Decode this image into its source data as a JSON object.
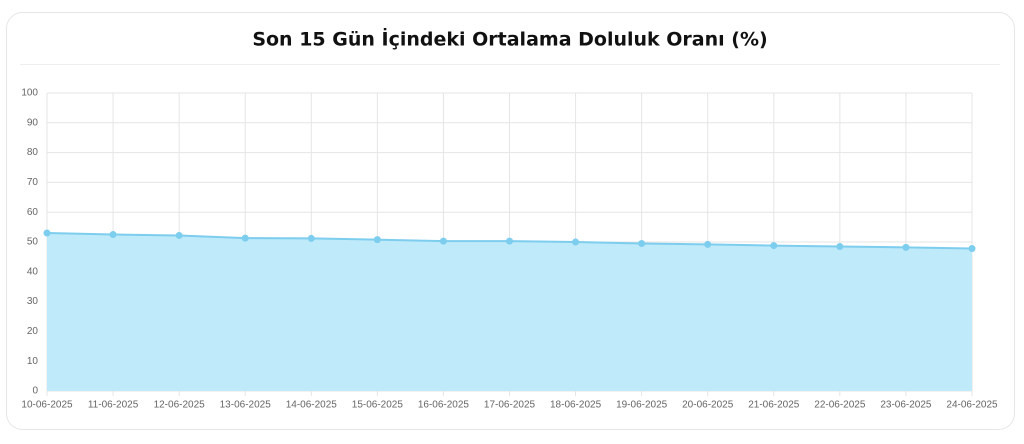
{
  "chart_data": {
    "type": "area",
    "title": "Son 15 Gün İçindeki Ortalama Doluluk Oranı (%)",
    "categories": [
      "10-06-2025",
      "11-06-2025",
      "12-06-2025",
      "13-06-2025",
      "14-06-2025",
      "15-06-2025",
      "16-06-2025",
      "17-06-2025",
      "18-06-2025",
      "19-06-2025",
      "20-06-2025",
      "21-06-2025",
      "22-06-2025",
      "23-06-2025",
      "24-06-2025"
    ],
    "values": [
      53.0,
      52.5,
      52.2,
      51.3,
      51.2,
      50.8,
      50.3,
      50.3,
      50.0,
      49.5,
      49.2,
      48.8,
      48.5,
      48.2,
      47.8
    ],
    "color": "#7dcdee",
    "fill_color": "#bfeafa",
    "ylim": [
      0,
      100
    ],
    "yticks": [
      0,
      10,
      20,
      30,
      40,
      50,
      60,
      70,
      80,
      90,
      100
    ],
    "grid": true
  }
}
